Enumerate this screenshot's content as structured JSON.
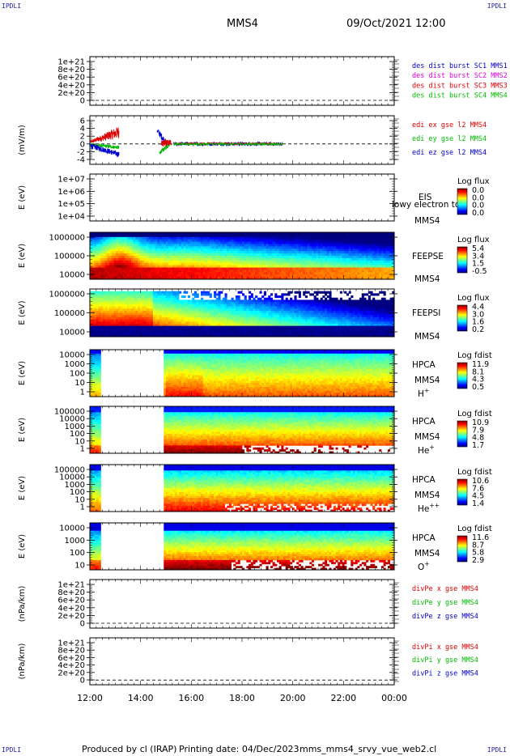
{
  "corner_label": "IPDLI",
  "header": {
    "title": "MMS4",
    "datetime": "09/Oct/2021 12:00"
  },
  "footer": {
    "produced": "Produced by cl (IRAP)",
    "printing": "Printing date: 04/Dec/2023",
    "filename": "mms_mms4_srvy_vue_web2.cl"
  },
  "colors": {
    "red": "#dd0000",
    "green": "#00bb00",
    "blue": "#0000cc",
    "magenta": "#dd00dd",
    "axis": "#000000"
  },
  "chart_data": {
    "type": "multi-panel",
    "time_axis": {
      "range": [
        "12:00",
        "00:00"
      ],
      "tick_labels": [
        "12:00",
        "14:00",
        "16:00",
        "18:00",
        "20:00",
        "22:00",
        "00:00"
      ]
    },
    "panels": [
      {
        "id": "des_dist",
        "kind": "line",
        "ylabel": "",
        "tick_labels": [
          "1e+21",
          "8e+20",
          "6e+20",
          "4e+20",
          "2e+20",
          "0"
        ],
        "legend": [
          {
            "text": "des dist burst SC1 MMS1",
            "color": "#0000cc"
          },
          {
            "text": "des dist burst SC2 MMS2",
            "color": "#dd00dd"
          },
          {
            "text": "des dist burst SC3 MMS3",
            "color": "#dd0000"
          },
          {
            "text": "des dist burst SC4 MMS4",
            "color": "#00bb00"
          }
        ],
        "zero_line": true
      },
      {
        "id": "edi",
        "kind": "line",
        "ylabel": "(mV/m)",
        "tick_labels": [
          "6",
          "4",
          "2",
          "0",
          "-2",
          "-4"
        ],
        "ylim": [
          -4,
          6
        ],
        "legend": [
          {
            "text": "edi ex gse l2 MMS4",
            "color": "#dd0000"
          },
          {
            "text": "edi ey gse l2 MMS4",
            "color": "#00bb00"
          },
          {
            "text": "edi ez gse l2 MMS4",
            "color": "#0000cc"
          }
        ],
        "zero_line": true,
        "note": "data 12:00-13:10 and 14:40-19:30"
      },
      {
        "id": "eis",
        "kind": "spectrogram",
        "ylabel": "E (eV)",
        "tick_labels": [
          "1e+07",
          "1e+06",
          "1e+05",
          "1e+04"
        ],
        "labels": [
          "EIS",
          "lowy electron to",
          "MMS4"
        ],
        "colorbar": {
          "title": "Log flux",
          "values": [
            "0.0",
            "0.0",
            "0.0",
            "0.0"
          ]
        },
        "empty": true
      },
      {
        "id": "feepse",
        "kind": "spectrogram",
        "ylabel": "E (eV)",
        "tick_labels": [
          "1000000",
          "100000",
          "10000"
        ],
        "labels": [
          "FEEPSE",
          "MMS4"
        ],
        "colorbar": {
          "title": "Log flux",
          "values": [
            "5.4",
            "3.4",
            "1.5",
            "-0.5"
          ]
        }
      },
      {
        "id": "feepsi",
        "kind": "spectrogram",
        "ylabel": "E (eV)",
        "tick_labels": [
          "1000000",
          "100000",
          "10000"
        ],
        "labels": [
          "FEEPSI",
          "MMS4"
        ],
        "colorbar": {
          "title": "Log flux",
          "values": [
            "4.4",
            "3.0",
            "1.6",
            "0.2"
          ]
        }
      },
      {
        "id": "hpca_h",
        "kind": "spectrogram",
        "ylabel": "E (eV)",
        "tick_labels": [
          "10000",
          "1000",
          "100",
          "10",
          "1"
        ],
        "labels": [
          "HPCA",
          "MMS4"
        ],
        "species": {
          "base": "H",
          "sup": "+"
        },
        "colorbar": {
          "title": "Log fdist",
          "values": [
            "11.9",
            "8.1",
            "4.3",
            "0.5"
          ]
        }
      },
      {
        "id": "hpca_he",
        "kind": "spectrogram",
        "ylabel": "E (eV)",
        "tick_labels": [
          "100000",
          "10000",
          "1000",
          "100",
          "10",
          "1"
        ],
        "labels": [
          "HPCA",
          "MMS4"
        ],
        "species": {
          "base": "He",
          "sup": "+"
        },
        "colorbar": {
          "title": "Log fdist",
          "values": [
            "10.9",
            "7.9",
            "4.8",
            "1.7"
          ]
        }
      },
      {
        "id": "hpca_hepp",
        "kind": "spectrogram",
        "ylabel": "E (eV)",
        "tick_labels": [
          "100000",
          "10000",
          "1000",
          "100",
          "10",
          "1"
        ],
        "labels": [
          "HPCA",
          "MMS4"
        ],
        "species": {
          "base": "He",
          "sup": "++"
        },
        "colorbar": {
          "title": "Log fdist",
          "values": [
            "10.6",
            "7.6",
            "4.5",
            "1.4"
          ]
        }
      },
      {
        "id": "hpca_o",
        "kind": "spectrogram",
        "ylabel": "E (eV)",
        "tick_labels": [
          "10000",
          "1000",
          "100",
          "10"
        ],
        "labels": [
          "HPCA",
          "MMS4"
        ],
        "species": {
          "base": "O",
          "sup": "+"
        },
        "colorbar": {
          "title": "Log fdist",
          "values": [
            "11.6",
            "8.7",
            "5.8",
            "2.9"
          ]
        }
      },
      {
        "id": "divpe",
        "kind": "line",
        "ylabel": "(nPa/km)",
        "tick_labels": [
          "1e+21",
          "8e+20",
          "6e+20",
          "4e+20",
          "2e+20",
          "0"
        ],
        "legend": [
          {
            "text": "divPe x gse MMS4",
            "color": "#dd0000"
          },
          {
            "text": "divPe y gse MMS4",
            "color": "#00bb00"
          },
          {
            "text": "divPe z gse MMS4",
            "color": "#0000cc"
          }
        ],
        "zero_line": true
      },
      {
        "id": "divpi",
        "kind": "line",
        "ylabel": "(nPa/km)",
        "tick_labels": [
          "1e+21",
          "8e+20",
          "6e+20",
          "4e+20",
          "2e+20",
          "0"
        ],
        "legend": [
          {
            "text": "divPi x gse MMS4",
            "color": "#dd0000"
          },
          {
            "text": "divPi y gse MMS4",
            "color": "#00bb00"
          },
          {
            "text": "divPi z gse MMS4",
            "color": "#0000cc"
          }
        ],
        "zero_line": true
      }
    ]
  }
}
